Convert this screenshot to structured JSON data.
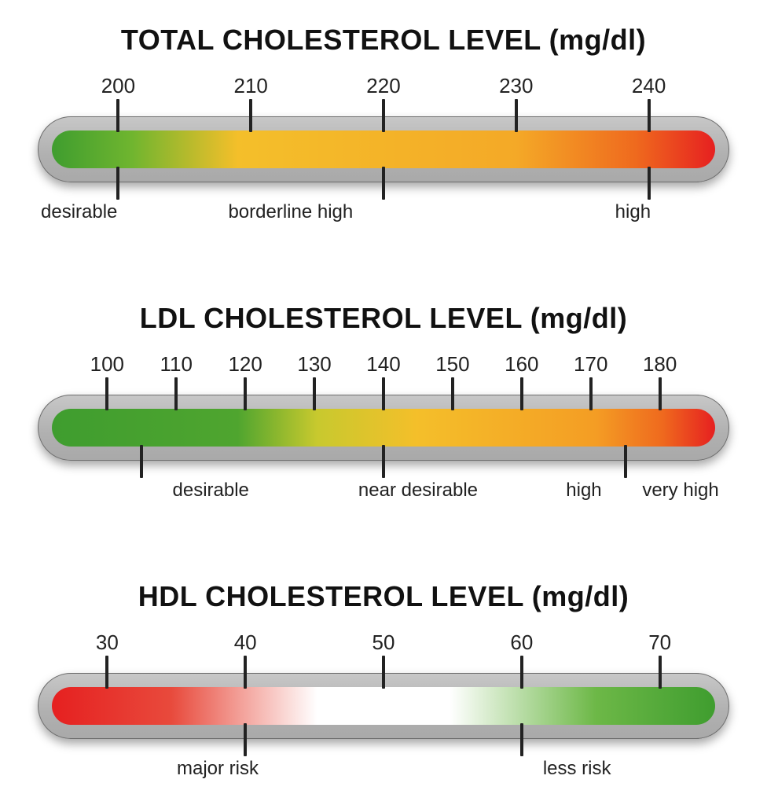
{
  "background_color": "#ffffff",
  "title_fontsize": 36,
  "tick_fontsize": 26,
  "range_fontsize": 24,
  "tick_color": "#222222",
  "pill_fill": "#b0b0b0",
  "pill_border": "#6d6d6d",
  "gradient_colors": {
    "green": "#3f9d2f",
    "yellowgreen": "#9cc23a",
    "yellow": "#f4bf2a",
    "orange": "#f08a1f",
    "red": "#e62020",
    "white": "#ffffff"
  },
  "gauges": [
    {
      "id": "total",
      "title": "TOTAL CHOLESTEROL LEVEL (mg/dl)",
      "axis_min": 195,
      "axis_max": 245,
      "ticks": [
        200,
        210,
        220,
        230,
        240
      ],
      "gradient_stops": [
        {
          "pct": 0,
          "color": "#3f9d2f"
        },
        {
          "pct": 12,
          "color": "#6fb52f"
        },
        {
          "pct": 28,
          "color": "#f4bf2a"
        },
        {
          "pct": 70,
          "color": "#f4a927"
        },
        {
          "pct": 88,
          "color": "#ef6a1e"
        },
        {
          "pct": 100,
          "color": "#e62020"
        }
      ],
      "bottom_ticks": [
        200,
        220,
        240
      ],
      "ranges": [
        {
          "label": "desirable",
          "at": 195,
          "align": "left"
        },
        {
          "label": "borderline high",
          "at": 213,
          "align": "center"
        },
        {
          "label": "high",
          "at": 240.5,
          "align": "right"
        }
      ]
    },
    {
      "id": "ldl",
      "title": "LDL CHOLESTEROL LEVEL (mg/dl)",
      "axis_min": 92,
      "axis_max": 188,
      "ticks": [
        100,
        110,
        120,
        130,
        140,
        150,
        160,
        170,
        180
      ],
      "gradient_stops": [
        {
          "pct": 0,
          "color": "#3f9d2f"
        },
        {
          "pct": 28,
          "color": "#4fa52f"
        },
        {
          "pct": 40,
          "color": "#c8c92e"
        },
        {
          "pct": 55,
          "color": "#f4bf2a"
        },
        {
          "pct": 82,
          "color": "#f49d24"
        },
        {
          "pct": 92,
          "color": "#ef6a1e"
        },
        {
          "pct": 100,
          "color": "#e62020"
        }
      ],
      "bottom_ticks": [
        105,
        140,
        175
      ],
      "ranges": [
        {
          "label": "desirable",
          "at": 115,
          "align": "center"
        },
        {
          "label": "near desirable",
          "at": 145,
          "align": "center"
        },
        {
          "label": "high",
          "at": 169,
          "align": "center"
        },
        {
          "label": "very high",
          "at": 183,
          "align": "center"
        }
      ]
    },
    {
      "id": "hdl",
      "title": "HDL CHOLESTEROL LEVEL (mg/dl)",
      "axis_min": 26,
      "axis_max": 74,
      "ticks": [
        30,
        40,
        50,
        60,
        70
      ],
      "gradient_stops": [
        {
          "pct": 0,
          "color": "#e62020"
        },
        {
          "pct": 18,
          "color": "#e84a3c"
        },
        {
          "pct": 40,
          "color": "#ffffff"
        },
        {
          "pct": 60,
          "color": "#ffffff"
        },
        {
          "pct": 82,
          "color": "#6db847"
        },
        {
          "pct": 100,
          "color": "#3f9d2f"
        }
      ],
      "bottom_ticks": [
        40,
        60
      ],
      "ranges": [
        {
          "label": "major risk",
          "at": 38,
          "align": "center"
        },
        {
          "label": "less risk",
          "at": 64,
          "align": "center"
        }
      ]
    }
  ]
}
